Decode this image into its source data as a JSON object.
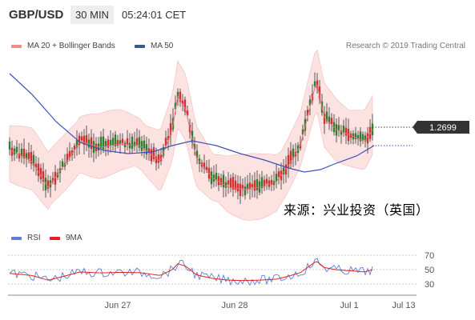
{
  "header": {
    "pair": "GBP/USD",
    "timeframe": "30 MIN",
    "time": "05:24:01 CET"
  },
  "legend": {
    "bb_label": "MA 20 + Bollinger Bands",
    "ma50_label": "MA 50",
    "credit": "Research © 2019 Trading Central"
  },
  "rsi_legend": {
    "rsi_label": "RSI",
    "ma_label": "9MA"
  },
  "watermark": "来源：兴业投资（英国）",
  "colors": {
    "bull": "#2e7d32",
    "bear": "#d32f2f",
    "band_fill": "#fde2e2",
    "ma20": "#e57373",
    "ma50": "#3f51b5",
    "rsi": "#5b7fd6",
    "rsi_ma": "#e02020",
    "price_tag_bg": "#333333"
  },
  "chart_data": {
    "type": "candlestick",
    "x_axis_labels": [
      "Jun 27",
      "Jun 28",
      "Jul 1",
      "Jul 13"
    ],
    "price_label": "1.2699",
    "last_price": 1.2699,
    "rsi_axis_labels": [
      "70",
      "50",
      "30"
    ],
    "rsi_levels": [
      70,
      50,
      30
    ],
    "series": [
      {
        "name": "MA 20 + Bollinger Bands"
      },
      {
        "name": "MA 50"
      },
      {
        "name": "RSI"
      },
      {
        "name": "9MA"
      }
    ]
  }
}
